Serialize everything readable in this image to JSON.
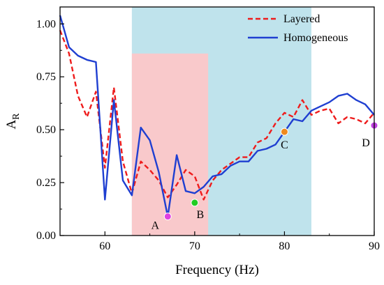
{
  "chart_data": {
    "type": "line",
    "xlabel": "Frequency (Hz)",
    "ylabel": {
      "main": "A",
      "sub": "R"
    },
    "xlim": [
      55,
      90
    ],
    "ylim": [
      0,
      1.08
    ],
    "xticks": [
      60,
      70,
      80,
      90
    ],
    "yticks": [
      0.0,
      0.25,
      0.5,
      0.75,
      1.0
    ],
    "xtick_labels": [
      "60",
      "70",
      "80",
      "90"
    ],
    "ytick_labels": [
      "0.00",
      "0.25",
      "0.50",
      "0.75",
      "1.00"
    ],
    "grid": false,
    "legend_position": "top-right",
    "regions": [
      {
        "x0": 63,
        "x1": 83,
        "y0": 0,
        "y1": 1.08,
        "color": "#bfe3ec"
      },
      {
        "x0": 63,
        "x1": 71.5,
        "y0": 0,
        "y1": 0.86,
        "color": "#f9c9cb"
      }
    ],
    "series": [
      {
        "name": "Layered",
        "color": "#ee1c1c",
        "dash": true,
        "x": [
          55,
          56,
          57,
          58,
          59,
          60,
          61,
          62,
          63,
          64,
          65,
          66,
          67,
          68,
          69,
          70,
          71,
          72,
          73,
          74,
          75,
          76,
          77,
          78,
          79,
          80,
          81,
          82,
          83,
          84,
          85,
          86,
          87,
          88,
          89,
          90
        ],
        "y": [
          0.97,
          0.86,
          0.66,
          0.56,
          0.68,
          0.32,
          0.7,
          0.35,
          0.2,
          0.35,
          0.31,
          0.26,
          0.18,
          0.24,
          0.31,
          0.28,
          0.17,
          0.26,
          0.31,
          0.34,
          0.37,
          0.37,
          0.44,
          0.46,
          0.53,
          0.58,
          0.56,
          0.64,
          0.57,
          0.59,
          0.6,
          0.53,
          0.56,
          0.55,
          0.53,
          0.58
        ]
      },
      {
        "name": "Homogeneous",
        "color": "#1f3fd1",
        "dash": false,
        "x": [
          55,
          56,
          57,
          58,
          59,
          60,
          61,
          62,
          63,
          64,
          65,
          66,
          67,
          68,
          69,
          70,
          71,
          72,
          73,
          74,
          75,
          76,
          77,
          78,
          79,
          80,
          81,
          82,
          83,
          84,
          85,
          86,
          87,
          88,
          89,
          90
        ],
        "y": [
          1.04,
          0.89,
          0.85,
          0.83,
          0.82,
          0.17,
          0.64,
          0.26,
          0.19,
          0.51,
          0.45,
          0.3,
          0.09,
          0.38,
          0.21,
          0.2,
          0.23,
          0.28,
          0.29,
          0.33,
          0.35,
          0.35,
          0.4,
          0.41,
          0.43,
          0.49,
          0.55,
          0.54,
          0.59,
          0.61,
          0.63,
          0.66,
          0.67,
          0.64,
          0.62,
          0.57
        ]
      }
    ],
    "points": [
      {
        "label": "A",
        "x": 67,
        "y": 0.09,
        "color": "#e040e0"
      },
      {
        "label": "B",
        "x": 70,
        "y": 0.155,
        "color": "#22cc22"
      },
      {
        "label": "C",
        "x": 80,
        "y": 0.49,
        "color": "#f08a1c"
      },
      {
        "label": "D",
        "x": 90,
        "y": 0.52,
        "color": "#c040e0"
      }
    ]
  }
}
